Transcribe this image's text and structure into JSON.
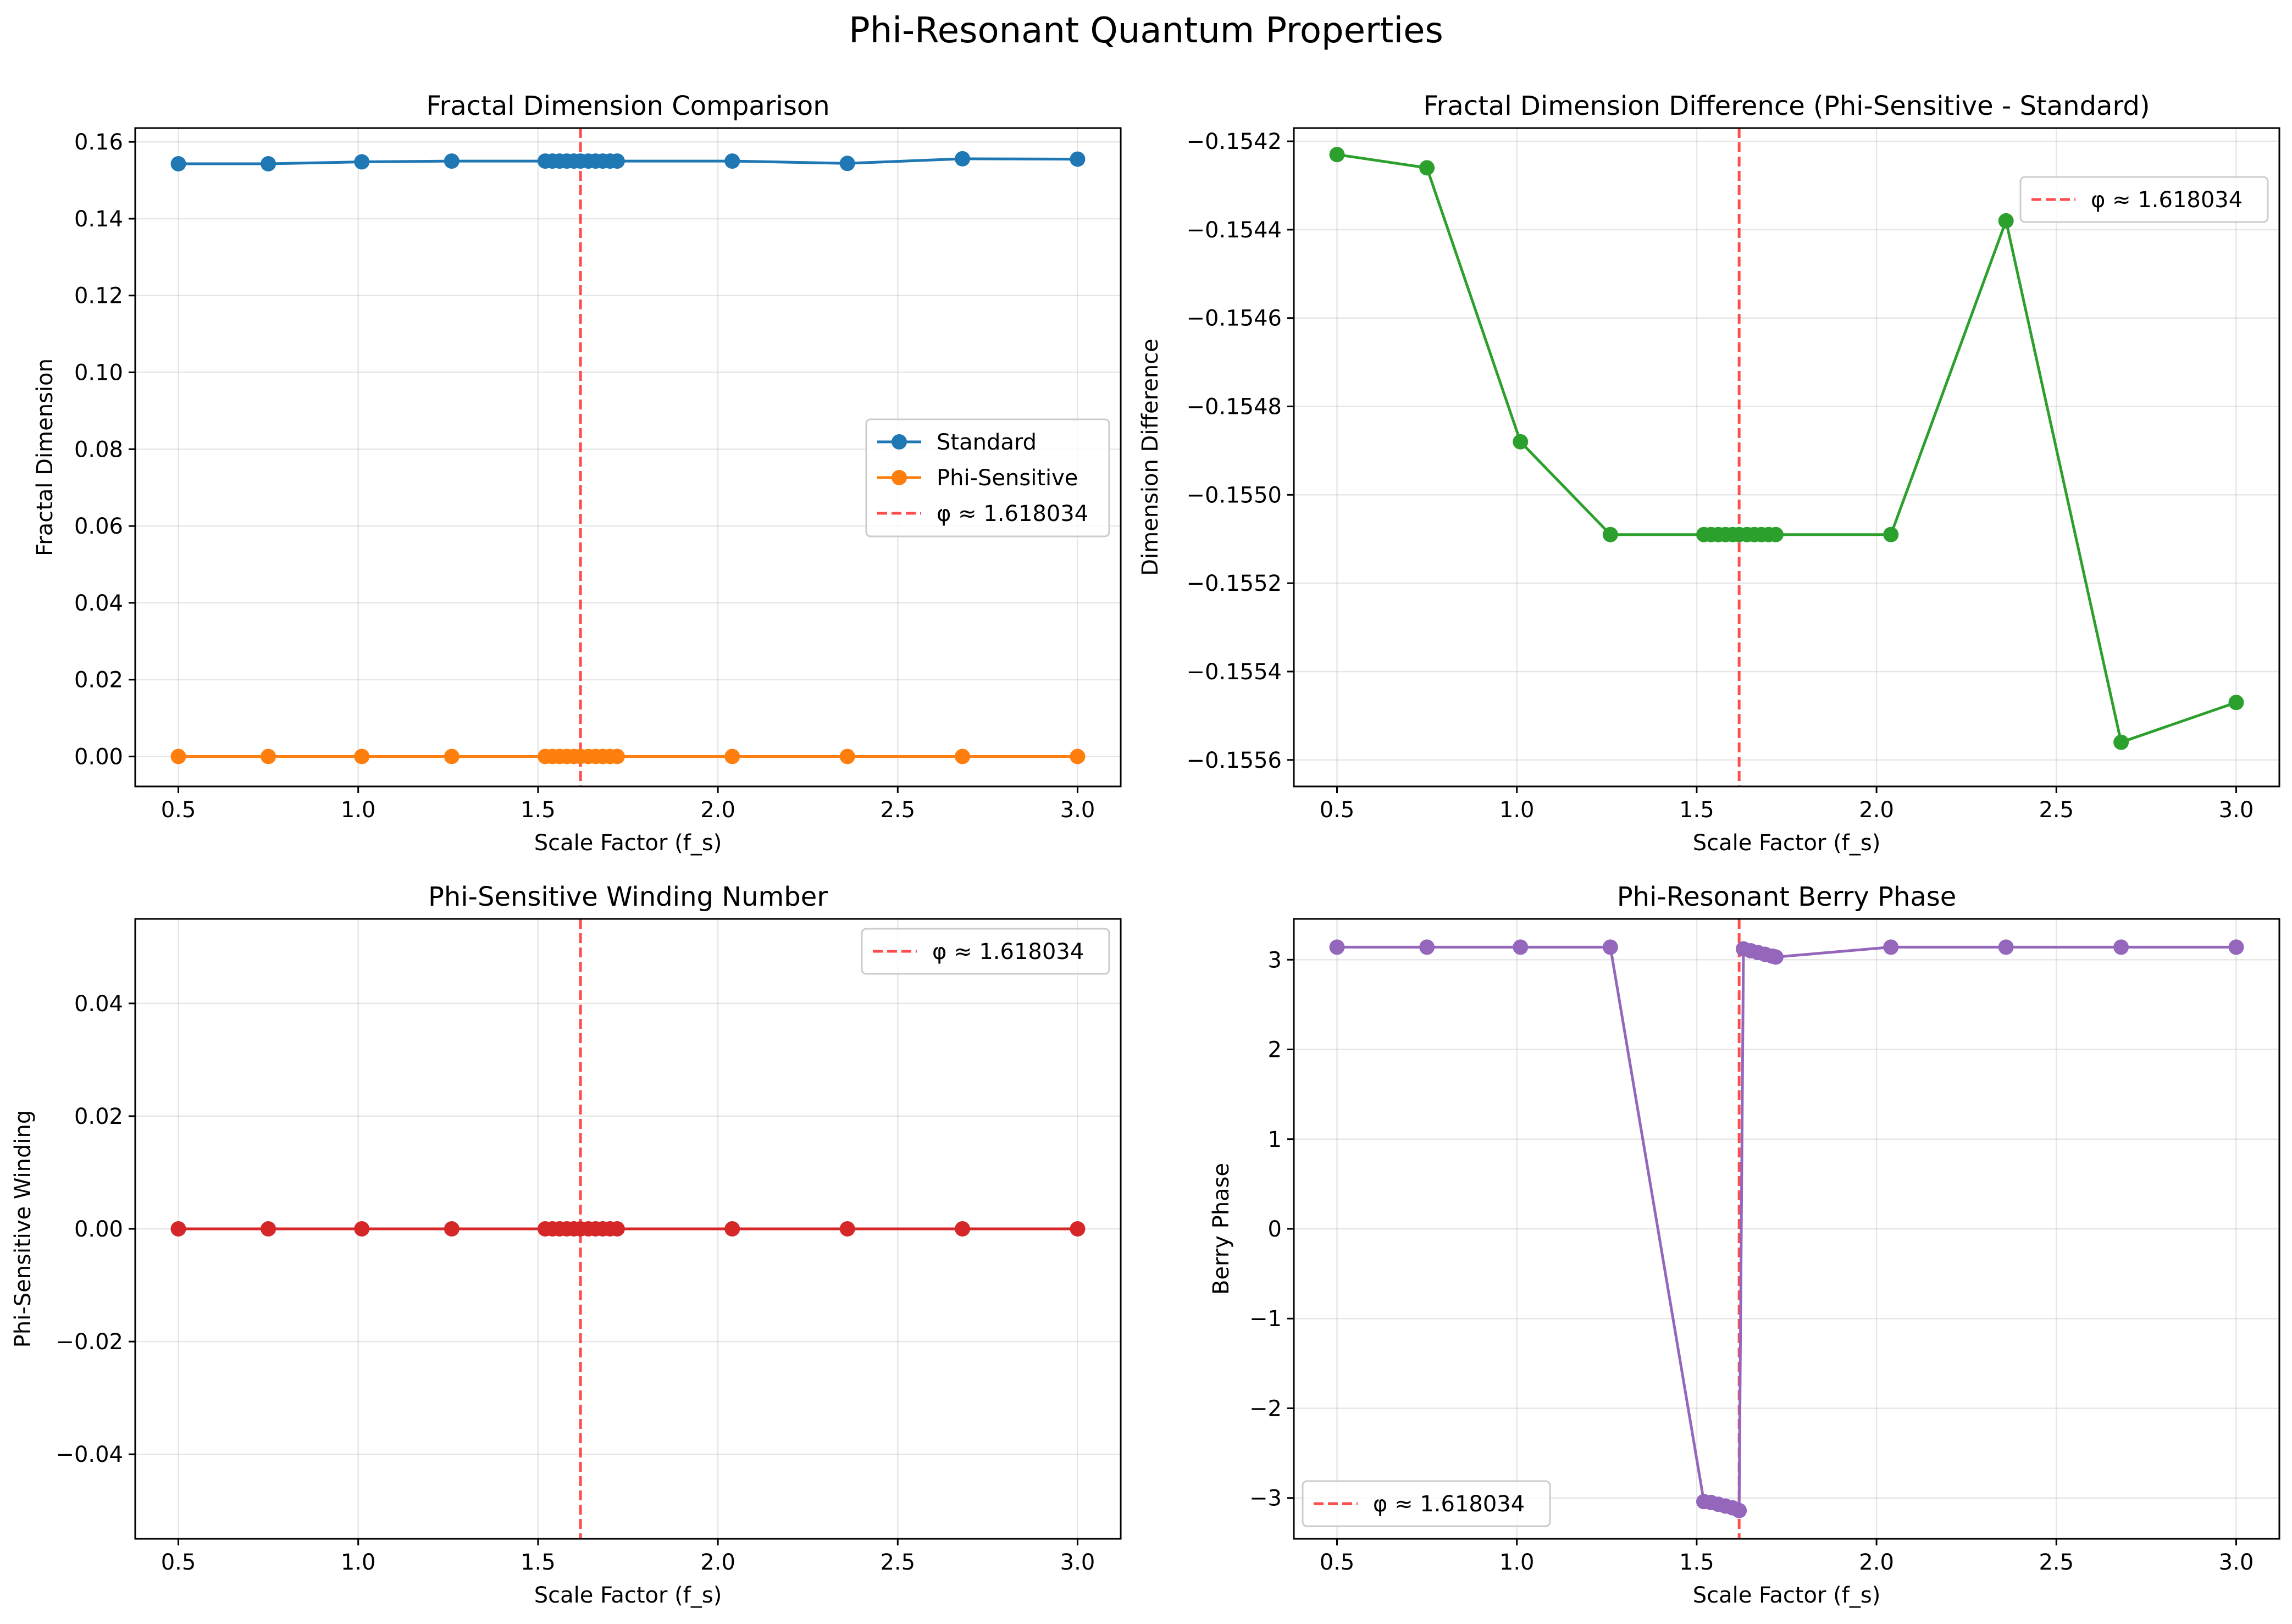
{
  "figure": {
    "suptitle": "Phi-Resonant Quantum Properties"
  },
  "chart_data": [
    {
      "type": "line",
      "title": "Fractal Dimension Comparison",
      "xlabel": "Scale Factor (f_s)",
      "ylabel": "Fractal Dimension",
      "xlim": [
        0.38,
        3.12
      ],
      "ylim": [
        -0.0078,
        0.1636
      ],
      "xticks": [
        0.5,
        1.0,
        1.5,
        2.0,
        2.5,
        3.0
      ],
      "xtick_labels": [
        "0.5",
        "1.0",
        "1.5",
        "2.0",
        "2.5",
        "3.0"
      ],
      "yticks": [
        0.0,
        0.02,
        0.04,
        0.06,
        0.08,
        0.1,
        0.12,
        0.14,
        0.16
      ],
      "ytick_labels": [
        "0.00",
        "0.02",
        "0.04",
        "0.06",
        "0.08",
        "0.10",
        "0.12",
        "0.14",
        "0.16"
      ],
      "grid": true,
      "legend": "center-right",
      "x": [
        0.5,
        0.75,
        1.01,
        1.26,
        1.52,
        1.54,
        1.56,
        1.58,
        1.6,
        1.618,
        1.64,
        1.66,
        1.68,
        1.7,
        1.72,
        2.04,
        2.36,
        2.68,
        3.0
      ],
      "series": [
        {
          "name": "Standard",
          "color": "#1f77b4",
          "values": [
            0.1543,
            0.1543,
            0.1548,
            0.155,
            0.155,
            0.155,
            0.155,
            0.155,
            0.155,
            0.155,
            0.155,
            0.155,
            0.155,
            0.155,
            0.155,
            0.155,
            0.1544,
            0.1556,
            0.1555
          ]
        },
        {
          "name": "Phi-Sensitive",
          "color": "#ff7f0e",
          "values": [
            0,
            0,
            0,
            0,
            0,
            0,
            0,
            0,
            0,
            0,
            0,
            0,
            0,
            0,
            0,
            0,
            0,
            0,
            0
          ]
        }
      ],
      "vline": {
        "x": 1.618034,
        "label": "φ ≈ 1.618034",
        "color": "#ff0000"
      }
    },
    {
      "type": "line",
      "title": "Fractal Dimension Difference (Phi-Sensitive - Standard)",
      "xlabel": "Scale Factor (f_s)",
      "ylabel": "Dimension Difference",
      "xlim": [
        0.38,
        3.12
      ],
      "ylim": [
        -0.15566,
        -0.15417
      ],
      "xticks": [
        0.5,
        1.0,
        1.5,
        2.0,
        2.5,
        3.0
      ],
      "xtick_labels": [
        "0.5",
        "1.0",
        "1.5",
        "2.0",
        "2.5",
        "3.0"
      ],
      "yticks": [
        -0.1556,
        -0.1554,
        -0.1552,
        -0.155,
        -0.1548,
        -0.1546,
        -0.1544,
        -0.1542
      ],
      "ytick_labels": [
        "−0.1556",
        "−0.1554",
        "−0.1552",
        "−0.1550",
        "−0.1548",
        "−0.1546",
        "−0.1544",
        "−0.1542"
      ],
      "grid": true,
      "legend": "top-right",
      "x": [
        0.5,
        0.75,
        1.01,
        1.26,
        1.52,
        1.54,
        1.56,
        1.58,
        1.6,
        1.618,
        1.64,
        1.66,
        1.68,
        1.7,
        1.72,
        2.04,
        2.36,
        2.68,
        3.0
      ],
      "series": [
        {
          "name": "",
          "color": "#2ca02c",
          "values": [
            -0.15423,
            -0.15426,
            -0.15488,
            -0.15509,
            -0.15509,
            -0.15509,
            -0.15509,
            -0.15509,
            -0.15509,
            -0.15509,
            -0.15509,
            -0.15509,
            -0.15509,
            -0.15509,
            -0.15509,
            -0.15509,
            -0.15438,
            -0.15556,
            -0.15547
          ]
        }
      ],
      "vline": {
        "x": 1.618034,
        "label": "φ ≈ 1.618034",
        "color": "#ff0000"
      }
    },
    {
      "type": "line",
      "title": "Phi-Sensitive Winding Number",
      "xlabel": "Scale Factor (f_s)",
      "ylabel": "Phi-Sensitive Winding",
      "xlim": [
        0.38,
        3.12
      ],
      "ylim": [
        -0.055,
        0.055
      ],
      "xticks": [
        0.5,
        1.0,
        1.5,
        2.0,
        2.5,
        3.0
      ],
      "xtick_labels": [
        "0.5",
        "1.0",
        "1.5",
        "2.0",
        "2.5",
        "3.0"
      ],
      "yticks": [
        -0.04,
        -0.02,
        0.0,
        0.02,
        0.04
      ],
      "ytick_labels": [
        "−0.04",
        "−0.02",
        "0.00",
        "0.02",
        "0.04"
      ],
      "grid": true,
      "legend": "top-right",
      "x": [
        0.5,
        0.75,
        1.01,
        1.26,
        1.52,
        1.54,
        1.56,
        1.58,
        1.6,
        1.618,
        1.64,
        1.66,
        1.68,
        1.7,
        1.72,
        2.04,
        2.36,
        2.68,
        3.0
      ],
      "series": [
        {
          "name": "",
          "color": "#d62728",
          "values": [
            0,
            0,
            0,
            0,
            0,
            0,
            0,
            0,
            0,
            0,
            0,
            0,
            0,
            0,
            0,
            0,
            0,
            0,
            0
          ]
        }
      ],
      "vline": {
        "x": 1.618034,
        "label": "φ ≈ 1.618034",
        "color": "#ff0000"
      }
    },
    {
      "type": "line",
      "title": "Phi-Resonant Berry Phase",
      "xlabel": "Scale Factor (f_s)",
      "ylabel": "Berry Phase",
      "xlim": [
        0.38,
        3.12
      ],
      "ylim": [
        -3.455,
        3.455
      ],
      "xticks": [
        0.5,
        1.0,
        1.5,
        2.0,
        2.5,
        3.0
      ],
      "xtick_labels": [
        "0.5",
        "1.0",
        "1.5",
        "2.0",
        "2.5",
        "3.0"
      ],
      "yticks": [
        -3,
        -2,
        -1,
        0,
        1,
        2,
        3
      ],
      "ytick_labels": [
        "−3",
        "−2",
        "−1",
        "0",
        "1",
        "2",
        "3"
      ],
      "grid": true,
      "legend": "bottom-left",
      "x": [
        0.5,
        0.75,
        1.01,
        1.26,
        1.52,
        1.54,
        1.56,
        1.58,
        1.6,
        1.618,
        1.63,
        1.65,
        1.67,
        1.69,
        1.71,
        1.72,
        2.04,
        2.36,
        2.68,
        3.0
      ],
      "series": [
        {
          "name": "",
          "color": "#9467bd",
          "values": [
            3.14,
            3.14,
            3.14,
            3.14,
            -3.04,
            -3.05,
            -3.07,
            -3.09,
            -3.11,
            -3.14,
            3.12,
            3.1,
            3.08,
            3.06,
            3.04,
            3.03,
            3.14,
            3.14,
            3.14,
            3.14
          ]
        }
      ],
      "vline": {
        "x": 1.618034,
        "label": "φ ≈ 1.618034",
        "color": "#ff0000"
      }
    }
  ]
}
